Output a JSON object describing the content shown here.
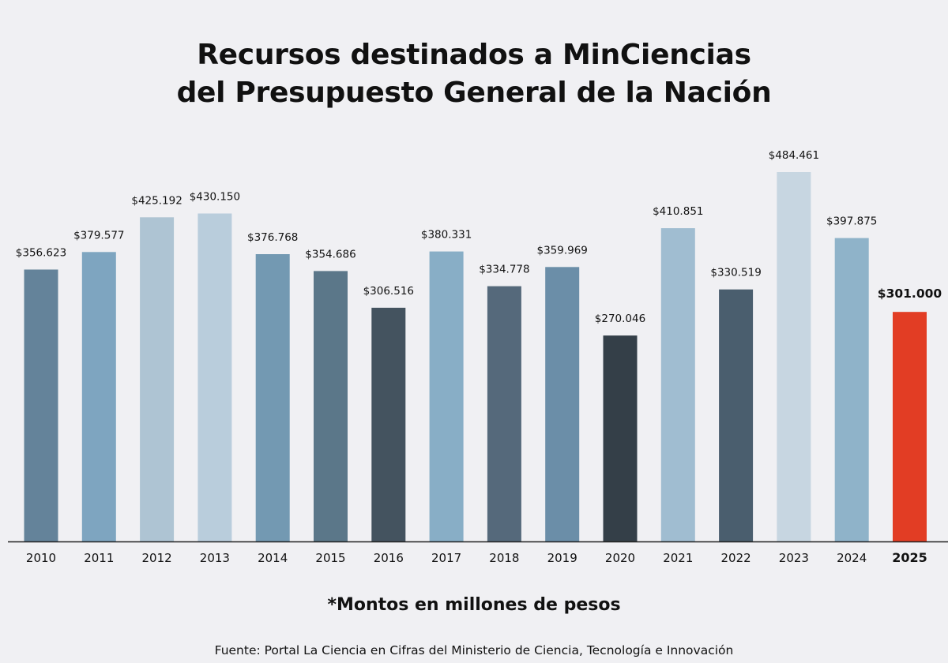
{
  "chart_data": {
    "type": "bar",
    "title_lines": [
      "Recursos destinados a MinCiencias",
      "del Presupuesto General de la Nación"
    ],
    "categories": [
      "2010",
      "2011",
      "2012",
      "2013",
      "2014",
      "2015",
      "2016",
      "2017",
      "2018",
      "2019",
      "2020",
      "2021",
      "2022",
      "2023",
      "2024",
      "2025"
    ],
    "values": [
      356623,
      379577,
      425192,
      430150,
      376768,
      354686,
      306516,
      380331,
      334778,
      359969,
      270046,
      410851,
      330519,
      484461,
      397875,
      301000
    ],
    "value_labels": [
      "$356.623",
      "$379.577",
      "$425.192",
      "$430.150",
      "$376.768",
      "$354.686",
      "$306.516",
      "$380.331",
      "$334.778",
      "$359.969",
      "$270.046",
      "$410.851",
      "$330.519",
      "$484.461",
      "$397.875",
      "$301.000"
    ],
    "colors": [
      "#64839a",
      "#7ea5c0",
      "#aec4d3",
      "#b9cddc",
      "#7399b2",
      "#5b7789",
      "#44535f",
      "#88aec6",
      "#55697b",
      "#6b8ea8",
      "#343f48",
      "#a0bdd1",
      "#4a5e6e",
      "#c7d6e1",
      "#8fb3c9",
      "#e23d24"
    ],
    "highlight_index": 15,
    "highlight_color": "#e23d24",
    "ylim": [
      0,
      484461
    ],
    "grid": false,
    "legend": "none",
    "note": "*Montos en millones de pesos",
    "source": "Fuente: Portal La Ciencia en Cifras del Ministerio de Ciencia, Tecnología e Innovación"
  }
}
